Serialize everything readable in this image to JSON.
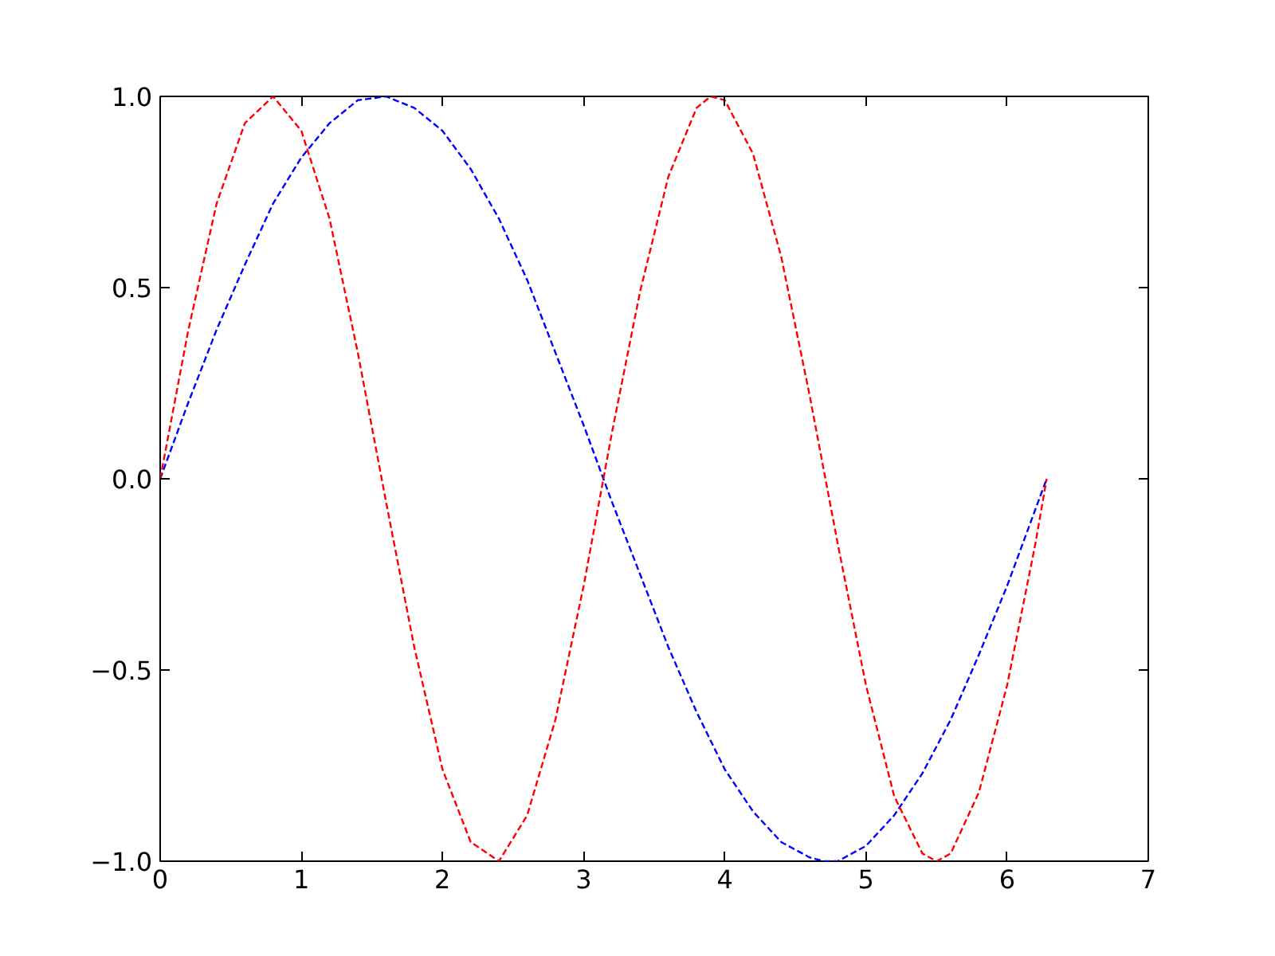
{
  "chart_data": {
    "type": "line",
    "line_style": "dashed",
    "xlim": [
      0,
      7
    ],
    "ylim": [
      -1,
      1
    ],
    "xticks": [
      0,
      1,
      2,
      3,
      4,
      5,
      6,
      7
    ],
    "yticks": [
      {
        "value": -1,
        "label": "−1.0"
      },
      {
        "value": -0.5,
        "label": "−0.5"
      },
      {
        "value": 0,
        "label": "0.0"
      },
      {
        "value": 0.5,
        "label": "0.5"
      },
      {
        "value": 1,
        "label": "1.0"
      }
    ],
    "series": [
      {
        "color": "#0000ff",
        "x": [
          0,
          0.2,
          0.4,
          0.6,
          0.8,
          1.0,
          1.2,
          1.4,
          1.6,
          1.8,
          2.0,
          2.2,
          2.4,
          2.6,
          2.8,
          3.0,
          3.2,
          3.4,
          3.6,
          3.8,
          4.0,
          4.2,
          4.4,
          4.6,
          4.7,
          4.8,
          5.0,
          5.2,
          5.4,
          5.6,
          5.8,
          6.0,
          6.2,
          6.28
        ],
        "values": [
          0,
          0.2,
          0.39,
          0.56,
          0.72,
          0.84,
          0.93,
          0.99,
          1.0,
          0.97,
          0.91,
          0.81,
          0.68,
          0.52,
          0.33,
          0.14,
          -0.06,
          -0.25,
          -0.44,
          -0.61,
          -0.76,
          -0.87,
          -0.95,
          -0.99,
          -1.0,
          -1.0,
          -0.96,
          -0.88,
          -0.77,
          -0.63,
          -0.46,
          -0.28,
          -0.08,
          0
        ]
      },
      {
        "color": "#ff0000",
        "x": [
          0,
          0.2,
          0.4,
          0.6,
          0.8,
          1.0,
          1.2,
          1.4,
          1.6,
          1.8,
          2.0,
          2.2,
          2.4,
          2.6,
          2.8,
          3.0,
          3.2,
          3.4,
          3.6,
          3.8,
          3.9,
          4.0,
          4.2,
          4.4,
          4.6,
          4.8,
          5.0,
          5.2,
          5.4,
          5.5,
          5.6,
          5.8,
          6.0,
          6.2,
          6.28
        ],
        "values": [
          0,
          0.39,
          0.72,
          0.93,
          1.0,
          0.91,
          0.68,
          0.33,
          -0.06,
          -0.44,
          -0.76,
          -0.95,
          -1.0,
          -0.88,
          -0.63,
          -0.28,
          0.12,
          0.49,
          0.79,
          0.97,
          1.0,
          0.99,
          0.85,
          0.58,
          0.22,
          -0.17,
          -0.54,
          -0.83,
          -0.98,
          -1.0,
          -0.98,
          -0.82,
          -0.54,
          -0.17,
          0
        ]
      }
    ]
  }
}
